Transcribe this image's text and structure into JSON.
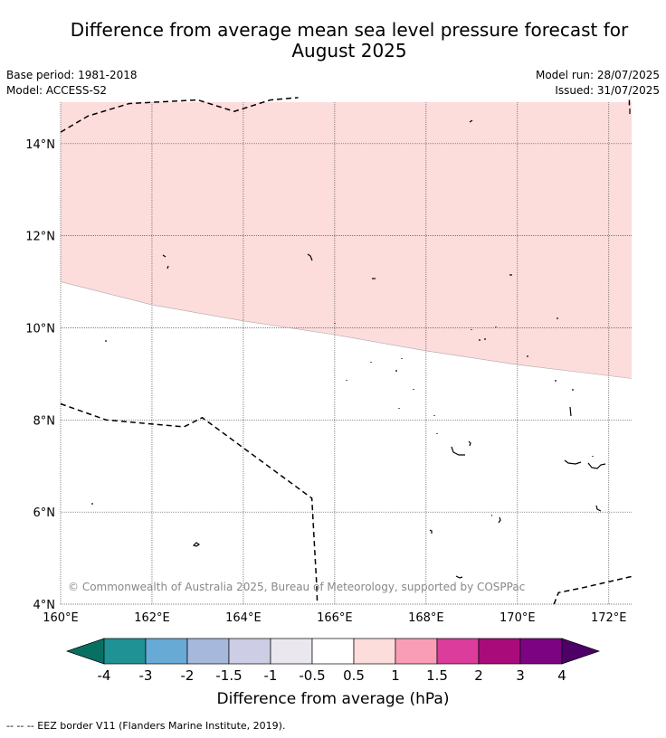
{
  "title_line1": "Difference from average mean sea level pressure forecast for",
  "title_line2": "August 2025",
  "base_period": "Base period: 1981-2018",
  "model": "Model: ACCESS-S2",
  "model_run": "Model run: 28/07/2025",
  "issued": "Issued: 31/07/2025",
  "copyright": "© Commonwealth of Australia 2025, Bureau of Meteorology, supported by COSPPac",
  "footer_note": "-- -- -- EEZ border V11 (Flanders Marine Institute, 2019).",
  "map": {
    "lon_range": [
      160,
      172.5
    ],
    "lat_range": [
      4,
      14.9
    ],
    "lon_ticks": [
      160,
      162,
      164,
      166,
      168,
      170,
      172
    ],
    "lon_tick_labels": [
      "160°E",
      "162°E",
      "164°E",
      "166°E",
      "168°E",
      "170°E",
      "172°E"
    ],
    "lat_ticks": [
      4,
      6,
      8,
      10,
      12,
      14
    ],
    "lat_tick_labels": [
      "4°N",
      "6°N",
      "8°N",
      "10°N",
      "12°N",
      "14°N"
    ],
    "grid": true,
    "anomaly_region": {
      "category": "0.5 to 1",
      "fill": "#fddcdc",
      "lower_boundary": [
        [
          160,
          11.0
        ],
        [
          162,
          10.5
        ],
        [
          164,
          10.15
        ],
        [
          166,
          9.85
        ],
        [
          168,
          9.5
        ],
        [
          170,
          9.2
        ],
        [
          172.5,
          8.9
        ]
      ]
    },
    "eez_borders": [
      [
        [
          160,
          14.25
        ],
        [
          160.6,
          14.6
        ],
        [
          161.5,
          14.87
        ],
        [
          163.0,
          14.95
        ],
        [
          163.8,
          14.7
        ],
        [
          164.6,
          14.95
        ],
        [
          165.2,
          15.0
        ]
      ],
      [
        [
          160,
          8.35
        ],
        [
          161.0,
          8.0
        ],
        [
          162.7,
          7.85
        ],
        [
          163.1,
          8.05
        ],
        [
          165.5,
          6.3
        ],
        [
          165.6,
          4.5
        ],
        [
          165.62,
          4.0
        ]
      ],
      [
        [
          170.8,
          4.0
        ],
        [
          170.9,
          4.25
        ],
        [
          171.4,
          4.35
        ],
        [
          172.5,
          4.6
        ]
      ],
      [
        [
          172.45,
          14.95
        ],
        [
          172.45,
          14.8
        ]
      ]
    ]
  },
  "colorbar": {
    "label": "Difference from average (hPa)",
    "tick_labels": [
      "-4",
      "-3",
      "-2",
      "-1.5",
      "-1",
      "-0.5",
      "0.5",
      "1",
      "1.5",
      "2",
      "3",
      "4"
    ],
    "colors": [
      "#087062",
      "#1f9296",
      "#68aad6",
      "#a6b8dc",
      "#cdcde5",
      "#eae7ee",
      "#ffffff",
      "#fddcdc",
      "#f99db6",
      "#dc3c9b",
      "#aa0b7a",
      "#7c0382",
      "#4e0068"
    ]
  }
}
